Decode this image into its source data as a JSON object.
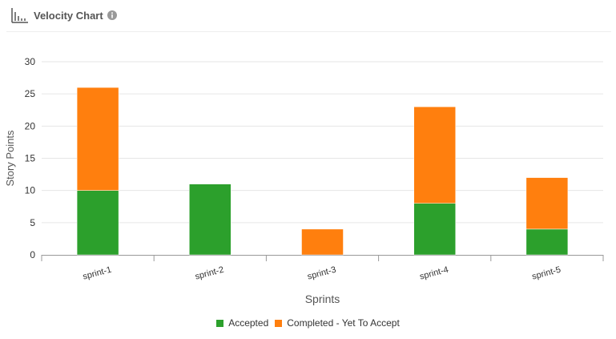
{
  "header": {
    "title": "Velocity Chart"
  },
  "colors": {
    "accepted": "#2ca02c",
    "completed": "#ff7f0e",
    "grid": "#e6e6e6",
    "axis": "#999999",
    "text": "#555555"
  },
  "chart_data": {
    "type": "bar",
    "stacked": true,
    "xlabel": "Sprints",
    "ylabel": "Story Points",
    "ylim": [
      0,
      30
    ],
    "yticks": [
      0,
      5,
      10,
      15,
      20,
      25,
      30
    ],
    "categories": [
      "sprint-1",
      "sprint-2",
      "sprint-3",
      "sprint-4",
      "sprint-5"
    ],
    "series": [
      {
        "name": "Accepted",
        "values": [
          10,
          11,
          0,
          8,
          4
        ]
      },
      {
        "name": "Completed - Yet To Accept",
        "values": [
          16,
          0,
          4,
          15,
          8
        ]
      }
    ],
    "grid": true,
    "legend_position": "bottom-center"
  }
}
